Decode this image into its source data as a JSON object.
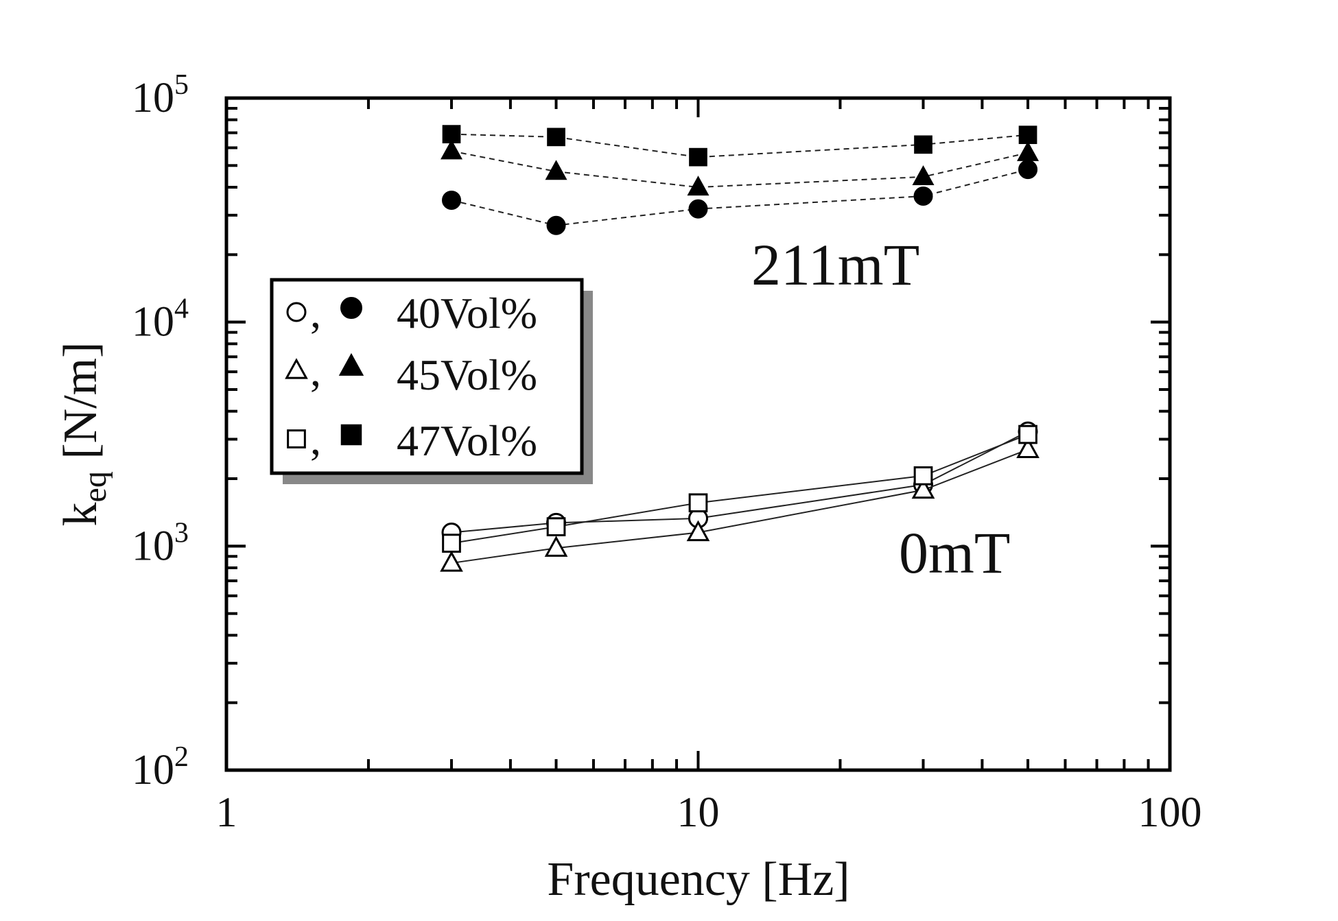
{
  "chart_data": {
    "type": "line",
    "xscale": "log",
    "yscale": "log",
    "xlim": [
      1,
      100
    ],
    "ylim": [
      100,
      100000
    ],
    "x_ticks": [
      {
        "value": 1,
        "label": "1"
      },
      {
        "value": 10,
        "label": "10"
      },
      {
        "value": 100,
        "label": "100"
      }
    ],
    "y_ticks": [
      {
        "value": 100,
        "base": "10",
        "exp": "2"
      },
      {
        "value": 1000,
        "base": "10",
        "exp": "3"
      },
      {
        "value": 10000,
        "base": "10",
        "exp": "4"
      },
      {
        "value": 100000,
        "base": "10",
        "exp": "5"
      }
    ],
    "xlabel": "Frequency [Hz]",
    "ylabel": {
      "main": "k",
      "sub": "eq",
      "unit": " [N/m]"
    },
    "annotations": [
      {
        "text": "211mT",
        "near": "upper group, center-right"
      },
      {
        "text": "0mT",
        "near": "lower group, right"
      }
    ],
    "legend": {
      "placement": "left-middle",
      "entries": [
        {
          "open": "circle",
          "filled": "circle",
          "label": "40Vol%"
        },
        {
          "open": "triangle",
          "filled": "triangle",
          "label": "45Vol%"
        },
        {
          "open": "square",
          "filled": "square",
          "label": "47Vol%"
        }
      ]
    },
    "x": [
      3,
      5,
      10,
      30,
      50
    ],
    "series": [
      {
        "name": "40Vol% 211mT",
        "marker": "circle",
        "filled": true,
        "line": "dashed",
        "values": [
          35000,
          27000,
          32000,
          36500,
          48000
        ]
      },
      {
        "name": "45Vol% 211mT",
        "marker": "triangle",
        "filled": true,
        "line": "dashed",
        "values": [
          58000,
          47000,
          40000,
          44500,
          57000
        ]
      },
      {
        "name": "47Vol% 211mT",
        "marker": "square",
        "filled": true,
        "line": "dashed",
        "values": [
          69000,
          67000,
          54500,
          62000,
          68500
        ]
      },
      {
        "name": "40Vol% 0mT",
        "marker": "circle",
        "filled": false,
        "line": "solid",
        "values": [
          1150,
          1270,
          1330,
          1880,
          3250
        ]
      },
      {
        "name": "45Vol% 0mT",
        "marker": "triangle",
        "filled": false,
        "line": "solid",
        "values": [
          840,
          980,
          1150,
          1780,
          2700
        ]
      },
      {
        "name": "47Vol% 0mT",
        "marker": "square",
        "filled": false,
        "line": "solid",
        "values": [
          1030,
          1220,
          1560,
          2060,
          3150
        ]
      }
    ]
  }
}
